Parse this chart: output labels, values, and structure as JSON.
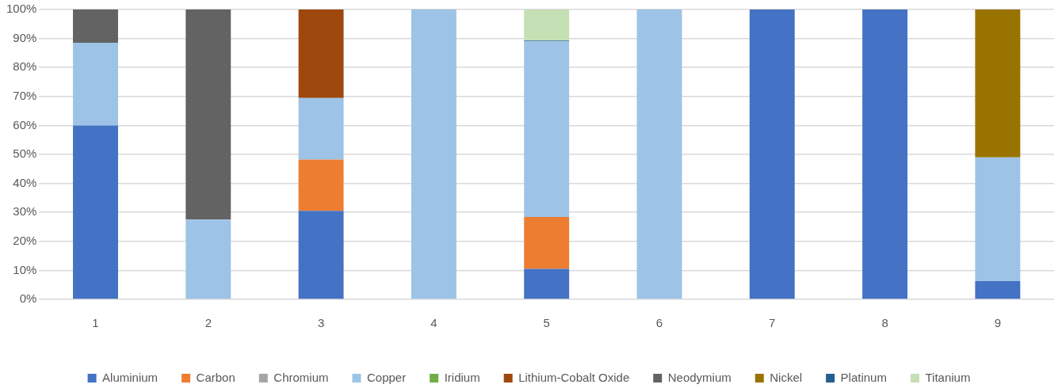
{
  "chart_data": {
    "type": "bar",
    "stacked": true,
    "categories": [
      "1",
      "2",
      "3",
      "4",
      "5",
      "6",
      "7",
      "8",
      "9"
    ],
    "series": [
      {
        "name": "Aluminium",
        "color": "#4472c4",
        "values": [
          60,
          0,
          30.5,
          0,
          10.5,
          0,
          100,
          100,
          6.3
        ]
      },
      {
        "name": "Carbon",
        "color": "#ed7d31",
        "values": [
          0,
          0,
          17.7,
          0,
          17.9,
          0,
          0,
          0,
          0
        ]
      },
      {
        "name": "Chromium",
        "color": "#a5a5a5",
        "values": [
          0,
          0,
          0,
          0,
          0,
          0,
          0,
          0,
          0
        ]
      },
      {
        "name": "Copper",
        "color": "#9dc3e6",
        "values": [
          28.5,
          27.5,
          21.3,
          100,
          60.6,
          100,
          0,
          0,
          42.7
        ]
      },
      {
        "name": "Iridium",
        "color": "#70ad47",
        "values": [
          0,
          0,
          0,
          0,
          0,
          0,
          0,
          0,
          0
        ]
      },
      {
        "name": "Lithium-Cobalt Oxide",
        "color": "#9e480e",
        "values": [
          0,
          0,
          30.5,
          0,
          0,
          0,
          0,
          0,
          0
        ]
      },
      {
        "name": "Neodymium",
        "color": "#636363",
        "values": [
          11.5,
          72.5,
          0,
          0,
          0,
          0,
          0,
          0,
          0
        ]
      },
      {
        "name": "Nickel",
        "color": "#997300",
        "values": [
          0,
          0,
          0,
          0,
          0,
          0,
          0,
          0,
          51
        ]
      },
      {
        "name": "Platinum",
        "color": "#255e91",
        "values": [
          0,
          0,
          0,
          0,
          0.3,
          0,
          0,
          0,
          0
        ]
      },
      {
        "name": "Titanium",
        "color": "#c5e0b4",
        "values": [
          0,
          0,
          0,
          0,
          10.7,
          0,
          0,
          0,
          0
        ]
      }
    ],
    "ylim": [
      0,
      100
    ],
    "yticks": [
      {
        "value": 0,
        "label": "0%"
      },
      {
        "value": 10,
        "label": "10%"
      },
      {
        "value": 20,
        "label": "20%"
      },
      {
        "value": 30,
        "label": "30%"
      },
      {
        "value": 40,
        "label": "40%"
      },
      {
        "value": 50,
        "label": "50%"
      },
      {
        "value": 60,
        "label": "60%"
      },
      {
        "value": 70,
        "label": "70%"
      },
      {
        "value": 80,
        "label": "80%"
      },
      {
        "value": 90,
        "label": "90%"
      },
      {
        "value": 100,
        "label": "100%"
      }
    ],
    "grid": "y",
    "legend": "bottom"
  }
}
